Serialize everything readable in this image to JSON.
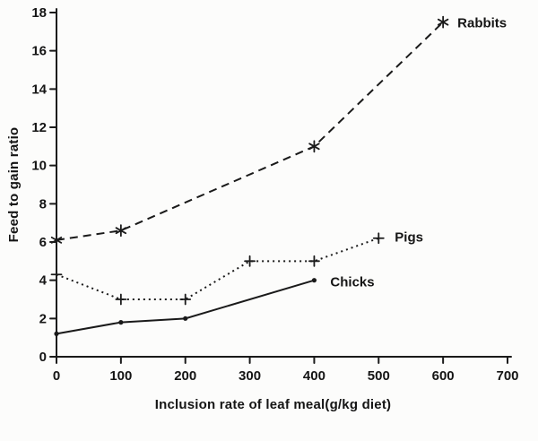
{
  "chart_data": {
    "type": "line",
    "title": "",
    "xlabel": "Inclusion rate of leaf meal(g/kg diet)",
    "ylabel": "Feed to gain ratio",
    "xlim": [
      0,
      700
    ],
    "ylim": [
      0,
      18
    ],
    "xticks": [
      0,
      100,
      200,
      300,
      400,
      500,
      600,
      700
    ],
    "yticks": [
      0,
      2,
      4,
      6,
      8,
      10,
      12,
      14,
      16,
      18
    ],
    "grid": false,
    "legend_position": "inline-labels",
    "line_color": "#1a1a1a",
    "series": [
      {
        "name": "Rabbits",
        "marker": "star",
        "line_style": "dashed",
        "x": [
          0,
          100,
          400,
          600
        ],
        "y": [
          6.1,
          6.6,
          11,
          17.5
        ],
        "label_offset": [
          16,
          6
        ]
      },
      {
        "name": "Pigs",
        "marker": "plus",
        "line_style": "dotted",
        "x": [
          0,
          100,
          200,
          300,
          400,
          500
        ],
        "y": [
          4.3,
          3,
          3,
          5,
          5,
          6.2
        ],
        "label_offset": [
          18,
          4
        ]
      },
      {
        "name": "Chicks",
        "marker": "dot",
        "line_style": "solid",
        "x": [
          0,
          100,
          200,
          400
        ],
        "y": [
          1.2,
          1.8,
          2,
          4
        ],
        "label_offset": [
          18,
          7
        ]
      }
    ]
  }
}
